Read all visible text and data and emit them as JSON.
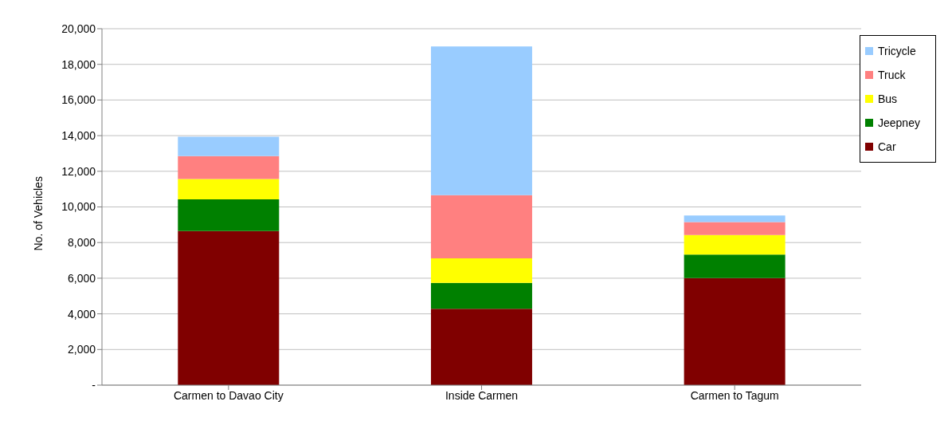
{
  "chart_data": {
    "type": "bar",
    "stacked": true,
    "ylabel": "No. of Vehicles",
    "categories": [
      "Carmen to Davao City",
      "Inside Carmen",
      "Carmen to Tagum"
    ],
    "series": [
      {
        "name": "Car",
        "color": "#800000",
        "values": [
          8650,
          4280,
          6010
        ]
      },
      {
        "name": "Jeepney",
        "color": "#008000",
        "values": [
          1780,
          1460,
          1320
        ]
      },
      {
        "name": "Bus",
        "color": "#ffff00",
        "values": [
          1140,
          1370,
          1090
        ]
      },
      {
        "name": "Truck",
        "color": "#ff8080",
        "values": [
          1280,
          3550,
          730
        ]
      },
      {
        "name": "Tricycle",
        "color": "#99ccff",
        "values": [
          1090,
          8340,
          370
        ]
      }
    ],
    "ylim": [
      0,
      20000
    ],
    "yticks": [
      {
        "value": 0,
        "label": "-"
      },
      {
        "value": 2000,
        "label": "2,000"
      },
      {
        "value": 4000,
        "label": "4,000"
      },
      {
        "value": 6000,
        "label": "6,000"
      },
      {
        "value": 8000,
        "label": "8,000"
      },
      {
        "value": 10000,
        "label": "10,000"
      },
      {
        "value": 12000,
        "label": "12,000"
      },
      {
        "value": 14000,
        "label": "14,000"
      },
      {
        "value": 16000,
        "label": "16,000"
      },
      {
        "value": 18000,
        "label": "18,000"
      },
      {
        "value": 20000,
        "label": "20,000"
      }
    ],
    "grid": "y",
    "legend": "top right"
  }
}
